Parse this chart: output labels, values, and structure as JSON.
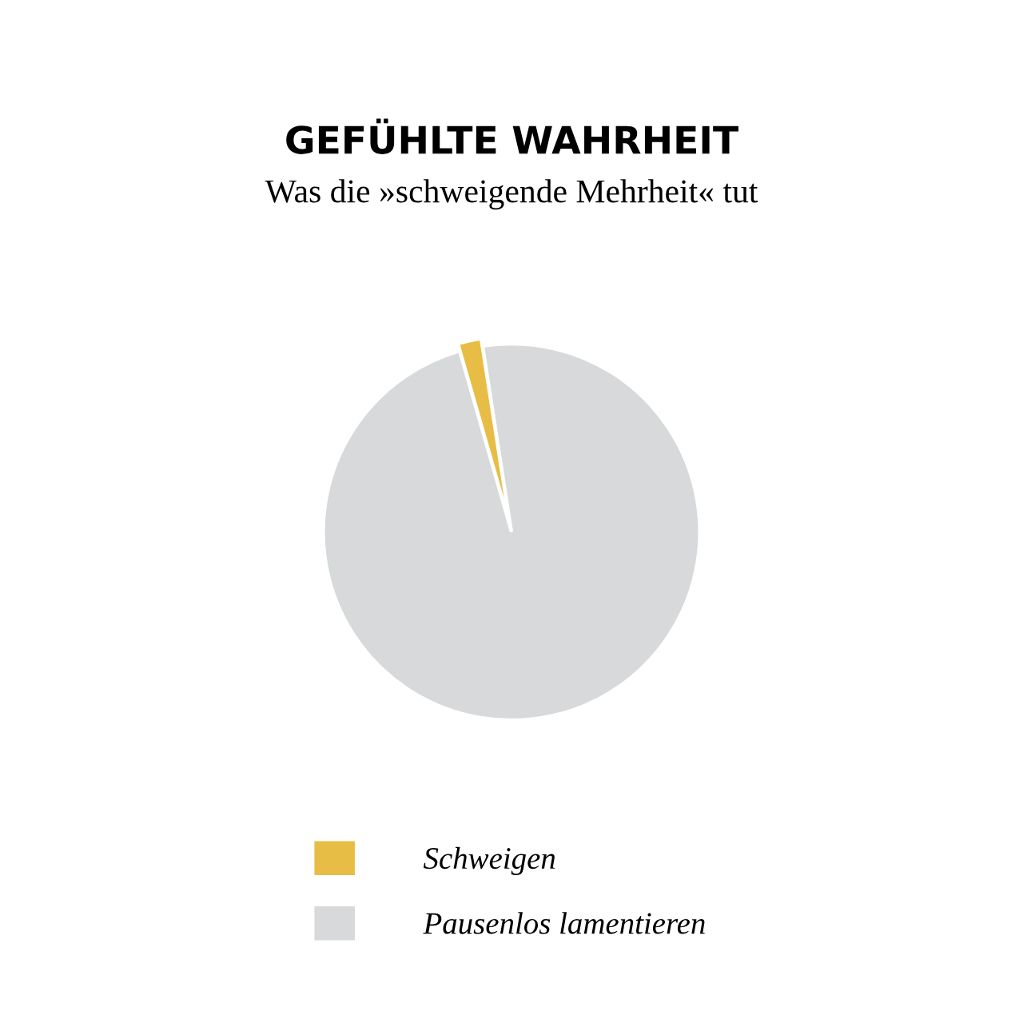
{
  "chart_data": {
    "type": "pie",
    "title": "GEFÜHLTE WAHRHEIT",
    "subtitle": "Was die »schweigende Mehrheit« tut",
    "categories": [
      "Schweigen",
      "Pausenlos lamentieren"
    ],
    "values": [
      2,
      98
    ],
    "colors": [
      "#e8bd45",
      "#d8d9da"
    ],
    "legend": "bottom"
  }
}
